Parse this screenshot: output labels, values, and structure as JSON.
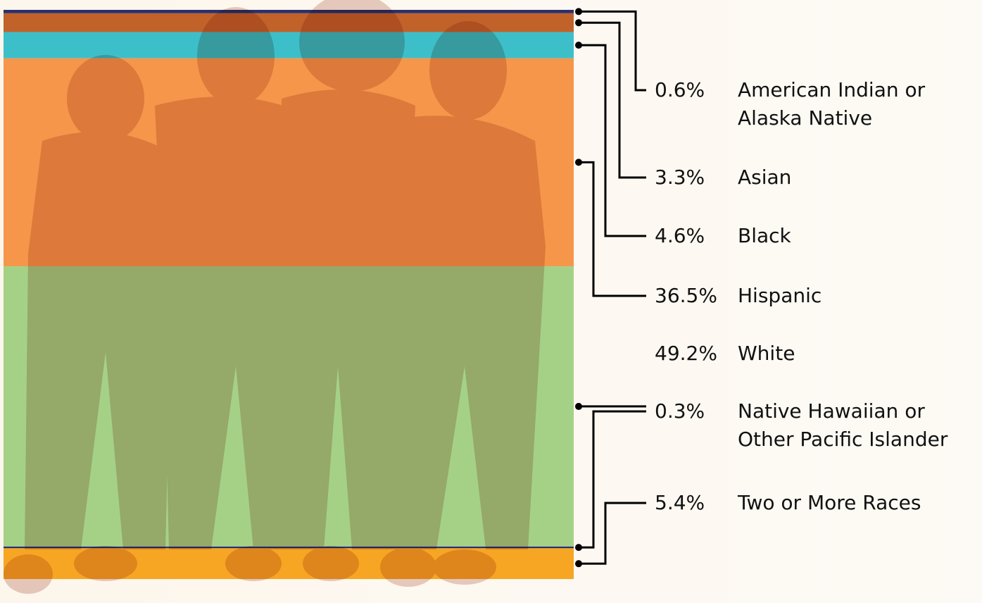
{
  "chart_data": {
    "type": "stacked_column",
    "categories": [
      "American Indian or Alaska Native",
      "Asian",
      "Black",
      "Hispanic",
      "White",
      "Native Hawaiian or Other Pacific Islander",
      "Two or More Races"
    ],
    "values": [
      0.6,
      3.3,
      4.6,
      36.5,
      49.2,
      0.3,
      5.4
    ],
    "value_labels": [
      "0.6%",
      "3.3%",
      "4.6%",
      "36.5%",
      "49.2%",
      "0.3%",
      "5.4%"
    ],
    "colors": [
      "#2b2f6e",
      "#c0622a",
      "#3dbfca",
      "#f5964a",
      "#a5d187",
      "#2b2f6e",
      "#f6a623"
    ]
  }
}
